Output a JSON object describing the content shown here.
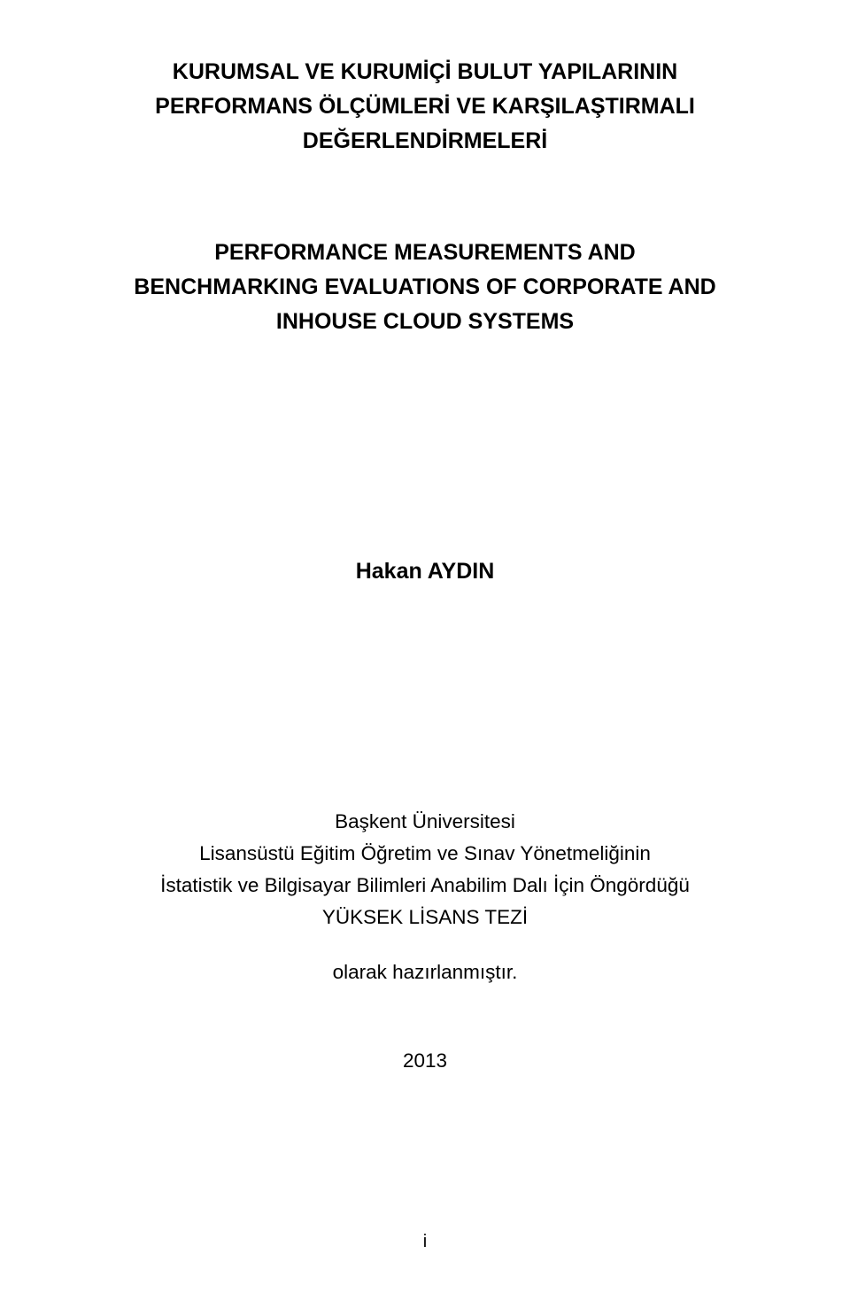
{
  "title_tr_line1": "KURUMSAL VE KURUMİÇİ BULUT YAPILARININ",
  "title_tr_line2": "PERFORMANS ÖLÇÜMLERİ VE KARŞILAŞTIRMALI",
  "title_tr_line3": "DEĞERLENDİRMELERİ",
  "title_en_line1": "PERFORMANCE MEASUREMENTS AND",
  "title_en_line2": "BENCHMARKING EVALUATIONS OF CORPORATE AND",
  "title_en_line3": "INHOUSE CLOUD SYSTEMS",
  "author": "Hakan AYDIN",
  "university": "Başkent Üniversitesi",
  "regulation_line1": "Lisansüstü Eğitim Öğretim ve Sınav Yönetmeliğinin",
  "regulation_line2": "İstatistik ve Bilgisayar Bilimleri Anabilim Dalı İçin Öngördüğü",
  "thesis_type": "YÜKSEK LİSANS TEZİ",
  "prepared_as": "olarak hazırlanmıştır.",
  "year": "2013",
  "page_number": "i"
}
